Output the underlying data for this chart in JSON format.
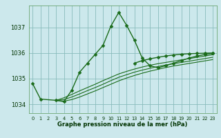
{
  "title": "Graphe pression niveau de la mer (hPa)",
  "background_color": "#cce8ec",
  "grid_color": "#88bbbb",
  "line_color": "#1a6b1a",
  "xlim": [
    -0.5,
    23.5
  ],
  "ylim": [
    1033.65,
    1037.85
  ],
  "yticks": [
    1034,
    1035,
    1036,
    1037
  ],
  "xticks": [
    0,
    1,
    2,
    3,
    4,
    5,
    6,
    7,
    8,
    9,
    10,
    11,
    12,
    13,
    14,
    15,
    16,
    17,
    18,
    19,
    20,
    21,
    22,
    23
  ],
  "series": [
    {
      "x": [
        0,
        1,
        3,
        4,
        5,
        6,
        7,
        8,
        9,
        10,
        11,
        12,
        13,
        14,
        15,
        16,
        17,
        18,
        19,
        20,
        21,
        22,
        23
      ],
      "y": [
        1034.8,
        1034.2,
        1034.15,
        1034.1,
        1034.55,
        1035.25,
        1035.6,
        1035.95,
        1036.3,
        1037.05,
        1037.58,
        1037.08,
        1036.5,
        1035.8,
        1035.5,
        1035.42,
        1035.5,
        1035.6,
        1035.7,
        1035.8,
        1035.88,
        1035.94,
        1035.98
      ],
      "marker": "D",
      "markersize": 2.5,
      "linewidth": 1.0,
      "zorder": 5
    },
    {
      "x": [
        3,
        4,
        5,
        6,
        7,
        8,
        9,
        10,
        11,
        12,
        13,
        14,
        15,
        16,
        17,
        18,
        19,
        20,
        21,
        22,
        23
      ],
      "y": [
        1034.15,
        1034.25,
        1034.38,
        1034.52,
        1034.65,
        1034.78,
        1034.92,
        1035.05,
        1035.18,
        1035.28,
        1035.37,
        1035.45,
        1035.52,
        1035.58,
        1035.63,
        1035.68,
        1035.73,
        1035.78,
        1035.83,
        1035.88,
        1035.93
      ],
      "marker": null,
      "markersize": 0,
      "linewidth": 0.8,
      "zorder": 3
    },
    {
      "x": [
        3,
        4,
        5,
        6,
        7,
        8,
        9,
        10,
        11,
        12,
        13,
        14,
        15,
        16,
        17,
        18,
        19,
        20,
        21,
        22,
        23
      ],
      "y": [
        1034.15,
        1034.18,
        1034.28,
        1034.4,
        1034.53,
        1034.65,
        1034.78,
        1034.92,
        1035.05,
        1035.15,
        1035.25,
        1035.33,
        1035.4,
        1035.47,
        1035.53,
        1035.58,
        1035.63,
        1035.68,
        1035.73,
        1035.78,
        1035.83
      ],
      "marker": null,
      "markersize": 0,
      "linewidth": 0.8,
      "zorder": 3
    },
    {
      "x": [
        3,
        4,
        5,
        6,
        7,
        8,
        9,
        10,
        11,
        12,
        13,
        14,
        15,
        16,
        17,
        18,
        19,
        20,
        21,
        22,
        23
      ],
      "y": [
        1034.15,
        1034.12,
        1034.18,
        1034.28,
        1034.4,
        1034.52,
        1034.65,
        1034.78,
        1034.91,
        1035.02,
        1035.12,
        1035.21,
        1035.29,
        1035.36,
        1035.43,
        1035.49,
        1035.54,
        1035.59,
        1035.64,
        1035.69,
        1035.74
      ],
      "marker": null,
      "markersize": 0,
      "linewidth": 0.8,
      "zorder": 3
    },
    {
      "x": [
        13,
        14,
        15,
        16,
        17,
        18,
        19,
        20,
        21,
        22,
        23
      ],
      "y": [
        1035.6,
        1035.7,
        1035.77,
        1035.83,
        1035.88,
        1035.92,
        1035.95,
        1035.97,
        1035.98,
        1035.99,
        1036.0
      ],
      "marker": "D",
      "markersize": 2.5,
      "linewidth": 1.0,
      "zorder": 4
    }
  ],
  "xlabel_fontsize": 6.0,
  "ytick_fontsize": 6.0,
  "xtick_fontsize": 4.8
}
